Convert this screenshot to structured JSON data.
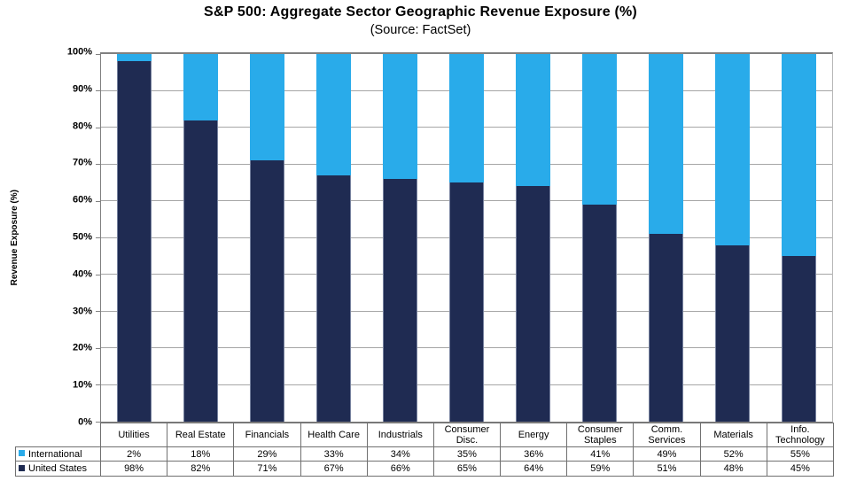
{
  "title": "S&P 500: Aggregate Sector Geographic Revenue Exposure (%)",
  "subtitle": "(Source: FactSet)",
  "colors": {
    "international": "#29ABEA",
    "united_states": "#1F2B52",
    "gridline": "#A6A6A6",
    "axis_border": "#808080",
    "table_border": "#707070",
    "background": "#FFFFFF",
    "text": "#000000"
  },
  "chart_data": {
    "type": "bar",
    "stacked": true,
    "title": "S&P 500: Aggregate Sector Geographic Revenue Exposure (%)",
    "subtitle": "(Source: FactSet)",
    "categories": [
      "Utilities",
      "Real Estate",
      "Financials",
      "Health Care",
      "Industrials",
      "Consumer Disc.",
      "Energy",
      "Consumer Staples",
      "Comm. Services",
      "Materials",
      "Info. Technology"
    ],
    "series": [
      {
        "name": "International",
        "color": "#29ABEA",
        "values": [
          2,
          18,
          29,
          33,
          34,
          35,
          36,
          41,
          49,
          52,
          55
        ]
      },
      {
        "name": "United States",
        "color": "#1F2B52",
        "values": [
          98,
          82,
          71,
          67,
          66,
          65,
          64,
          59,
          51,
          48,
          45
        ]
      }
    ],
    "xlabel": "",
    "ylabel": "Revenue Exposure (%)",
    "ylim": [
      0,
      100
    ],
    "ytick_step": 10,
    "ytick_labels": [
      "0%",
      "10%",
      "20%",
      "30%",
      "40%",
      "50%",
      "60%",
      "70%",
      "80%",
      "90%",
      "100%"
    ],
    "value_suffix": "%",
    "grid": true,
    "legend_position": "table-bottom-left"
  }
}
